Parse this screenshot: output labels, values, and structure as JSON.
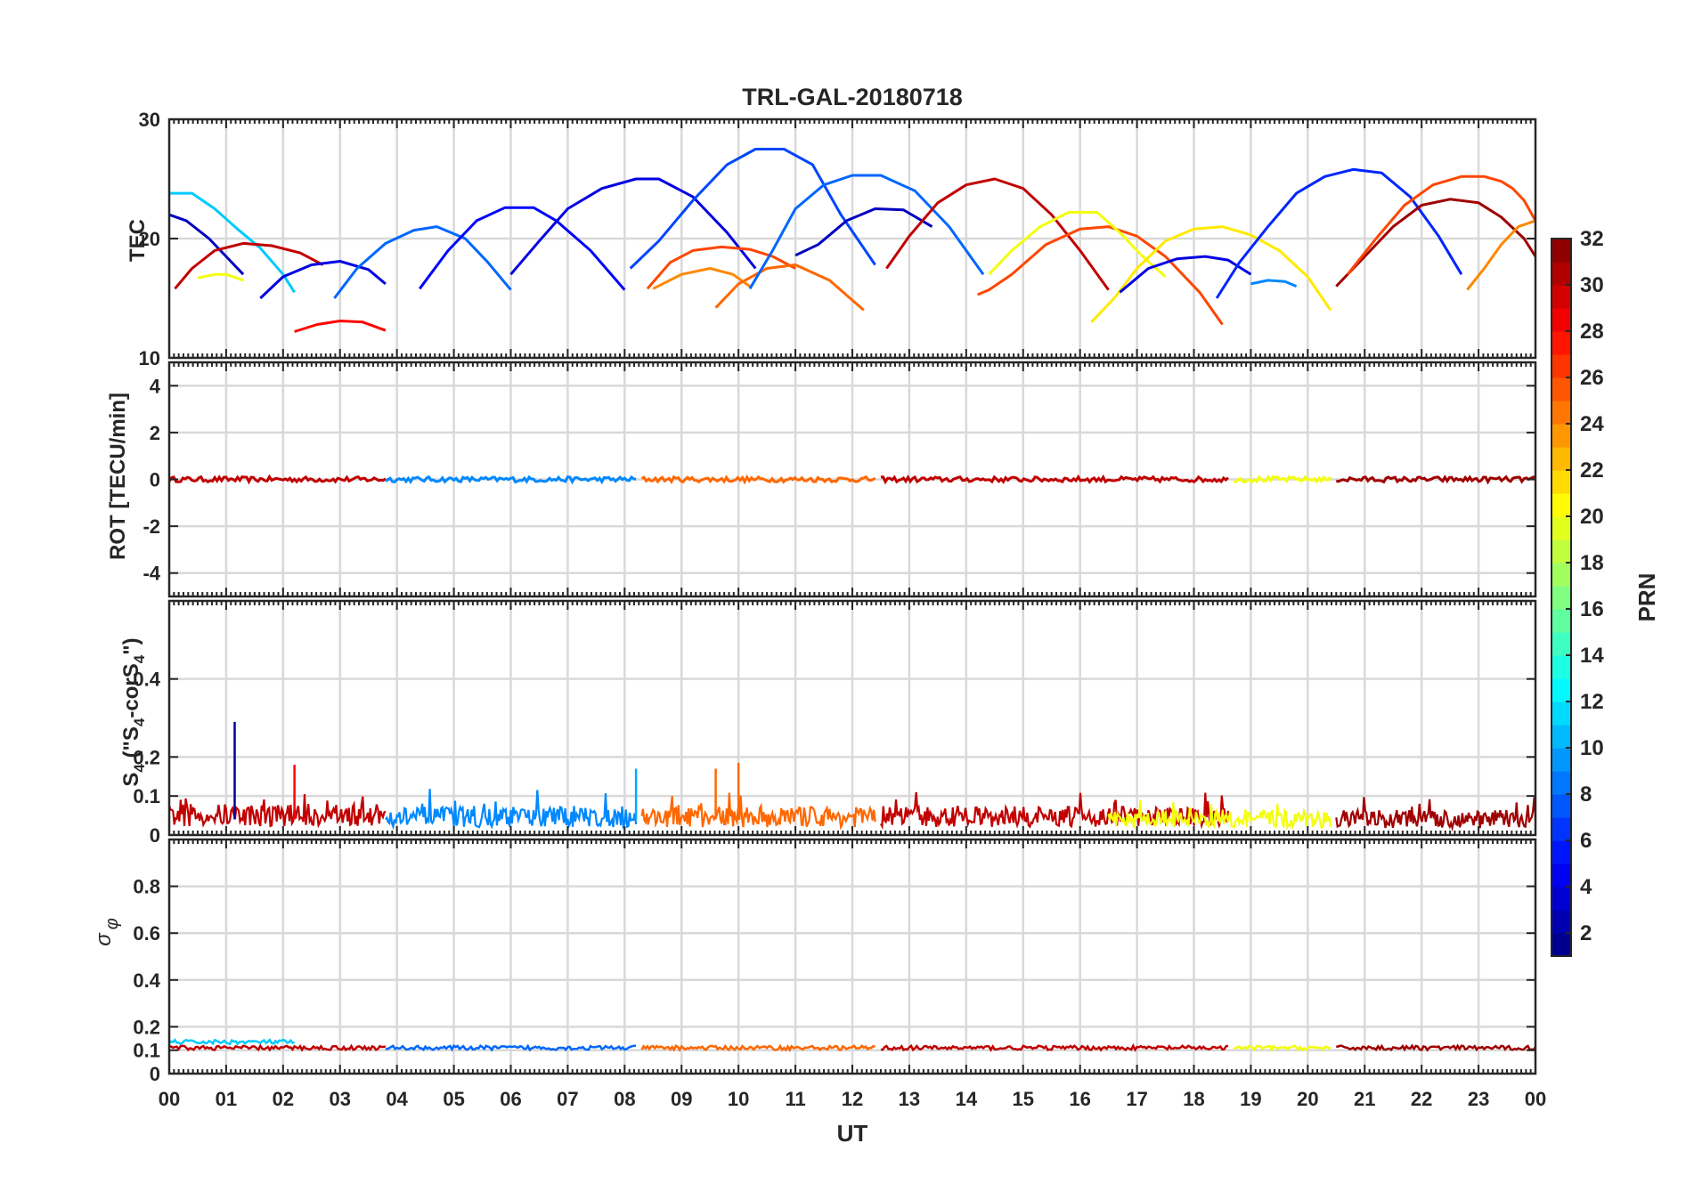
{
  "chart_data": {
    "type": "line",
    "title": "TRL-GAL-20180718",
    "xlabel": "UT",
    "x_ticks": [
      "00",
      "01",
      "02",
      "03",
      "04",
      "05",
      "06",
      "07",
      "08",
      "09",
      "10",
      "11",
      "12",
      "13",
      "14",
      "15",
      "16",
      "17",
      "18",
      "19",
      "20",
      "21",
      "22",
      "23",
      "00"
    ],
    "xlim": [
      0,
      24
    ],
    "grid": true,
    "colorbar": {
      "label": "PRN",
      "range": [
        1,
        32
      ],
      "ticks": [
        2,
        4,
        6,
        8,
        10,
        12,
        14,
        16,
        18,
        20,
        22,
        24,
        26,
        28,
        30,
        32
      ],
      "colormap": "jet"
    },
    "panels": [
      {
        "id": "tec",
        "ylabel": "TEC",
        "ylim": [
          10,
          30
        ],
        "yticks": [
          10,
          20,
          30
        ],
        "series": [
          {
            "prn": 11,
            "x": [
              0.0,
              0.4,
              0.8,
              1.2,
              1.6,
              2.0,
              2.2
            ],
            "y": [
              23.8,
              23.8,
              22.5,
              20.8,
              19.2,
              17.0,
              15.5
            ]
          },
          {
            "prn": 3,
            "x": [
              0.0,
              0.3,
              0.7,
              1.0,
              1.3
            ],
            "y": [
              22.0,
              21.5,
              20.0,
              18.5,
              17.0
            ]
          },
          {
            "prn": 30,
            "x": [
              0.1,
              0.4,
              0.8,
              1.3,
              1.8,
              2.3,
              2.7
            ],
            "y": [
              15.8,
              17.5,
              19.0,
              19.6,
              19.4,
              18.8,
              17.8
            ]
          },
          {
            "prn": 20,
            "x": [
              0.5,
              0.8,
              1.0,
              1.3
            ],
            "y": [
              16.7,
              17.0,
              17.0,
              16.5
            ]
          },
          {
            "prn": 4,
            "x": [
              1.6,
              2.0,
              2.5,
              3.0,
              3.5,
              3.8
            ],
            "y": [
              15.0,
              16.8,
              17.8,
              18.1,
              17.4,
              16.2
            ]
          },
          {
            "prn": 28,
            "x": [
              2.2,
              2.6,
              3.0,
              3.4,
              3.8
            ],
            "y": [
              12.2,
              12.8,
              13.1,
              13.0,
              12.3
            ]
          },
          {
            "prn": 8,
            "x": [
              2.9,
              3.3,
              3.8,
              4.3,
              4.7,
              5.2,
              5.6,
              6.0
            ],
            "y": [
              15.0,
              17.5,
              19.6,
              20.7,
              21.0,
              20.0,
              18.0,
              15.7
            ]
          },
          {
            "prn": 5,
            "x": [
              4.4,
              4.9,
              5.4,
              5.9,
              6.4,
              6.8,
              7.4,
              8.0
            ],
            "y": [
              15.8,
              19.0,
              21.5,
              22.6,
              22.6,
              21.5,
              19.0,
              15.7
            ]
          },
          {
            "prn": 4,
            "x": [
              6.0,
              6.5,
              7.0,
              7.6,
              8.2,
              8.6,
              9.2,
              9.8,
              10.3
            ],
            "y": [
              17.0,
              19.8,
              22.5,
              24.2,
              25.0,
              25.0,
              23.5,
              20.5,
              17.5
            ]
          },
          {
            "prn": 7,
            "x": [
              8.1,
              8.6,
              9.2,
              9.8,
              10.3,
              10.8,
              11.3,
              11.8,
              12.4
            ],
            "y": [
              17.5,
              19.8,
              23.2,
              26.2,
              27.5,
              27.5,
              26.2,
              22.0,
              17.8
            ]
          },
          {
            "prn": 26,
            "x": [
              8.4,
              8.8,
              9.2,
              9.7,
              10.2,
              10.6,
              11.0
            ],
            "y": [
              15.8,
              18.0,
              19.0,
              19.3,
              19.1,
              18.5,
              17.5
            ]
          },
          {
            "prn": 24,
            "x": [
              8.5,
              9.0,
              9.5,
              9.9,
              10.2
            ],
            "y": [
              15.8,
              17.0,
              17.5,
              17.0,
              16.0
            ]
          },
          {
            "prn": 25,
            "x": [
              9.6,
              10.0,
              10.5,
              11.0,
              11.6,
              12.2
            ],
            "y": [
              14.2,
              16.2,
              17.5,
              17.8,
              16.5,
              14.0
            ]
          },
          {
            "prn": 8,
            "x": [
              10.2,
              10.6,
              11.0,
              11.5,
              12.0,
              12.5,
              13.1,
              13.7,
              14.3
            ],
            "y": [
              15.8,
              19.0,
              22.5,
              24.5,
              25.3,
              25.3,
              24.0,
              21.0,
              17.0
            ]
          },
          {
            "prn": 3,
            "x": [
              11.0,
              11.4,
              11.9,
              12.4,
              12.9,
              13.4
            ],
            "y": [
              18.6,
              19.5,
              21.5,
              22.5,
              22.4,
              21.0
            ]
          },
          {
            "prn": 30,
            "x": [
              12.6,
              13.0,
              13.5,
              14.0,
              14.5,
              15.0,
              15.5,
              16.0,
              16.5
            ],
            "y": [
              17.5,
              20.2,
              23.0,
              24.5,
              25.0,
              24.2,
              22.0,
              19.0,
              15.7
            ]
          },
          {
            "prn": 26,
            "x": [
              14.2,
              14.4,
              14.8,
              15.4,
              16.0,
              16.5,
              17.0,
              17.5,
              18.1,
              18.5
            ],
            "y": [
              15.3,
              15.7,
              17.0,
              19.5,
              20.8,
              21.0,
              20.2,
              18.5,
              15.5,
              12.8
            ]
          },
          {
            "prn": 20,
            "x": [
              14.4,
              14.8,
              15.3,
              15.8,
              16.3,
              16.7,
              17.1,
              17.5
            ],
            "y": [
              17.0,
              19.0,
              21.0,
              22.2,
              22.2,
              20.5,
              18.5,
              16.8
            ]
          },
          {
            "prn": 21,
            "x": [
              16.2,
              16.6,
              17.0,
              17.5,
              18.0,
              18.5,
              19.0,
              19.5,
              20.0,
              20.4
            ],
            "y": [
              13.0,
              15.0,
              17.5,
              19.8,
              20.8,
              21.0,
              20.3,
              19.0,
              16.8,
              14.0
            ]
          },
          {
            "prn": 4,
            "x": [
              16.7,
              17.2,
              17.7,
              18.2,
              18.6,
              19.0
            ],
            "y": [
              15.5,
              17.5,
              18.3,
              18.5,
              18.2,
              17.0
            ]
          },
          {
            "prn": 6,
            "x": [
              18.4,
              18.8,
              19.3,
              19.8,
              20.3,
              20.8,
              21.3,
              21.8,
              22.3,
              22.7
            ],
            "y": [
              15.0,
              18.0,
              21.0,
              23.8,
              25.2,
              25.8,
              25.5,
              23.5,
              20.2,
              17.0
            ]
          },
          {
            "prn": 9,
            "x": [
              19.0,
              19.3,
              19.6,
              19.8
            ],
            "y": [
              16.2,
              16.5,
              16.4,
              16.0
            ]
          },
          {
            "prn": 31,
            "x": [
              20.5,
              21.0,
              21.5,
              22.0,
              22.5,
              23.0,
              23.4,
              23.8,
              24.0
            ],
            "y": [
              16.0,
              18.5,
              21.0,
              22.8,
              23.3,
              23.0,
              21.8,
              20.0,
              18.5
            ]
          },
          {
            "prn": 26,
            "x": [
              20.7,
              21.2,
              21.7,
              22.2,
              22.7,
              23.1,
              23.4,
              23.6,
              23.8,
              24.0
            ],
            "y": [
              17.0,
              20.0,
              22.8,
              24.5,
              25.2,
              25.2,
              24.8,
              24.2,
              23.2,
              21.5
            ]
          },
          {
            "prn": 24,
            "x": [
              22.8,
              23.1,
              23.4,
              23.7,
              24.0
            ],
            "y": [
              15.7,
              17.5,
              19.5,
              21.0,
              21.5
            ]
          }
        ]
      },
      {
        "id": "rot",
        "ylabel": "ROT [TECU/min]",
        "ylim": [
          -5,
          5
        ],
        "yticks": [
          -4,
          -2,
          0,
          2,
          4
        ],
        "series": [
          {
            "prn": 30,
            "segments": [
              [
                0.0,
                3.8
              ]
            ],
            "value": 0.0
          },
          {
            "prn": 9,
            "segments": [
              [
                3.8,
                8.2
              ]
            ],
            "value": 0.0
          },
          {
            "prn": 25,
            "segments": [
              [
                8.3,
                12.4
              ]
            ],
            "value": 0.0
          },
          {
            "prn": 30,
            "segments": [
              [
                12.5,
                18.6
              ]
            ],
            "value": 0.0
          },
          {
            "prn": 20,
            "segments": [
              [
                18.7,
                20.4
              ]
            ],
            "value": 0.0
          },
          {
            "prn": 31,
            "segments": [
              [
                20.5,
                24.0
              ]
            ],
            "value": 0.0
          }
        ]
      },
      {
        "id": "s4",
        "ylabel": "S4 (\"S4-corS4\")",
        "ylabel_main": "S",
        "ylabel_sub": "4",
        "ylabel_paren_a": " (\"S",
        "ylabel_paren_b": "-corS",
        "ylabel_paren_c": "\")",
        "ylim": [
          0,
          0.6
        ],
        "yticks": [
          0,
          0.1,
          0.2,
          0.4
        ],
        "ytick_labels": [
          "0",
          "0.1",
          "0.2",
          "0.4"
        ],
        "series": [
          {
            "prn": 30,
            "range": [
              0.0,
              3.8
            ],
            "mean": 0.05
          },
          {
            "prn": 9,
            "range": [
              3.8,
              8.2
            ],
            "mean": 0.045
          },
          {
            "prn": 25,
            "range": [
              8.3,
              12.4
            ],
            "mean": 0.045
          },
          {
            "prn": 30,
            "range": [
              12.5,
              18.6
            ],
            "mean": 0.045
          },
          {
            "prn": 20,
            "range": [
              16.5,
              20.4
            ],
            "mean": 0.04
          },
          {
            "prn": 31,
            "range": [
              20.5,
              24.0
            ],
            "mean": 0.04
          }
        ],
        "spikes": [
          {
            "prn": 2,
            "x": 1.15,
            "y": 0.29
          },
          {
            "prn": 28,
            "x": 2.2,
            "y": 0.18
          },
          {
            "prn": 10,
            "x": 8.2,
            "y": 0.17
          },
          {
            "prn": 25,
            "x": 9.6,
            "y": 0.17
          },
          {
            "prn": 25,
            "x": 10.0,
            "y": 0.185
          }
        ]
      },
      {
        "id": "sigphi",
        "ylabel": "σ φ",
        "ylabel_sigma": "σ",
        "ylabel_phi": "φ",
        "ylim": [
          0,
          1
        ],
        "yticks": [
          0,
          0.1,
          0.2,
          0.4,
          0.6,
          0.8
        ],
        "ytick_labels": [
          "0",
          "0.1",
          "0.2",
          "0.4",
          "0.6",
          "0.8"
        ],
        "series": [
          {
            "prn": 11,
            "range": [
              0.0,
              2.2
            ],
            "mean": 0.135
          },
          {
            "prn": 30,
            "range": [
              0.0,
              3.8
            ],
            "mean": 0.11
          },
          {
            "prn": 8,
            "range": [
              3.8,
              8.2
            ],
            "mean": 0.11
          },
          {
            "prn": 25,
            "range": [
              8.3,
              12.4
            ],
            "mean": 0.11
          },
          {
            "prn": 30,
            "range": [
              12.5,
              18.6
            ],
            "mean": 0.11
          },
          {
            "prn": 20,
            "range": [
              18.7,
              20.4
            ],
            "mean": 0.11
          },
          {
            "prn": 31,
            "range": [
              20.5,
              24.0
            ],
            "mean": 0.11
          }
        ]
      }
    ]
  }
}
